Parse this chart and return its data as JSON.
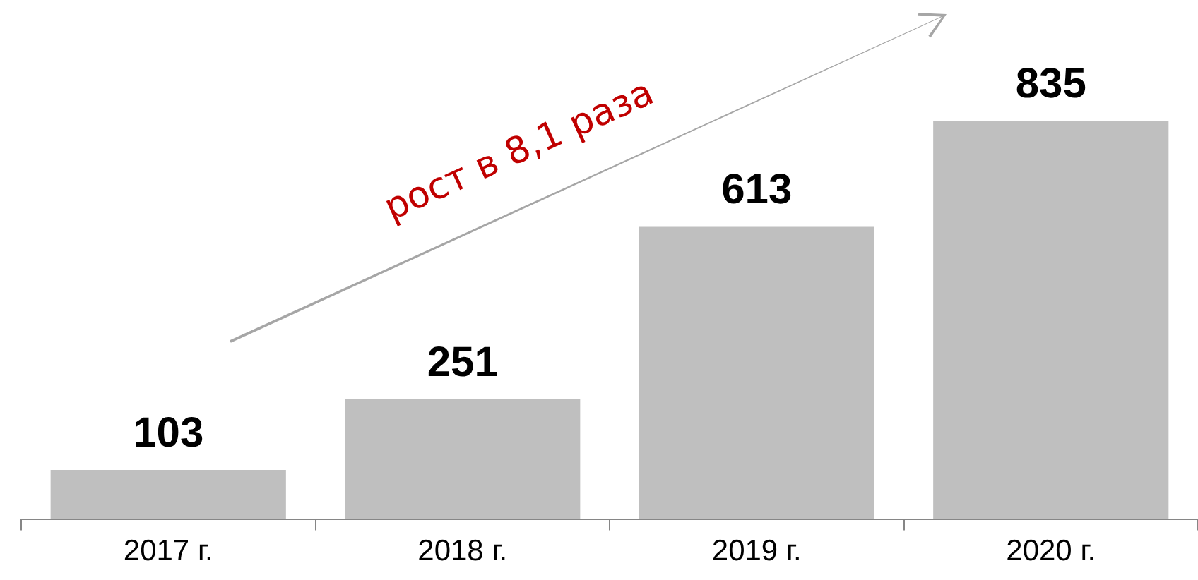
{
  "chart_data": {
    "type": "bar",
    "categories": [
      "2017 г.",
      "2018 г.",
      "2019 г.",
      "2020 г."
    ],
    "values": [
      103,
      251,
      613,
      835
    ],
    "color": "#bfbfbf",
    "data_labels": true,
    "grid": false,
    "legend": false,
    "tick_labels": "x",
    "annotations": [
      "рост в 8,1 раза"
    ]
  }
}
